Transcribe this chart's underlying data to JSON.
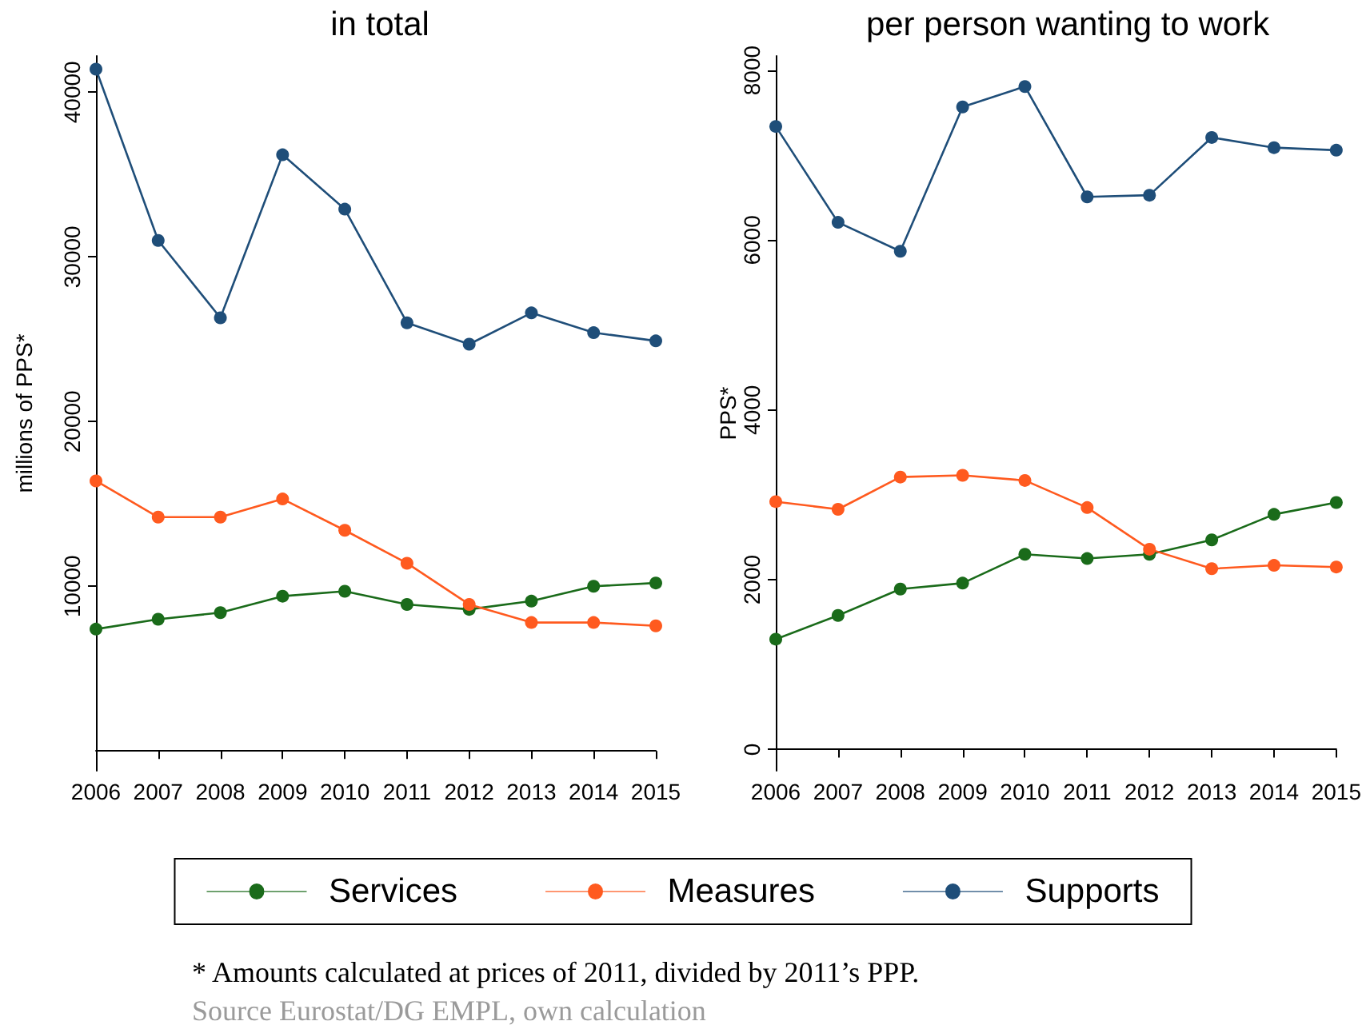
{
  "chart_data": [
    {
      "type": "line",
      "title": "in total",
      "ylabel": "millions of PPS*",
      "categories": [
        "2006",
        "2007",
        "2008",
        "2009",
        "2010",
        "2011",
        "2012",
        "2013",
        "2014",
        "2015"
      ],
      "ylim": [
        -1200,
        42200
      ],
      "yticks": [
        10000,
        20000,
        30000,
        40000
      ],
      "grid": false,
      "legend": false,
      "marker": "circle",
      "series": [
        {
          "color": "#1a6b1a",
          "values": [
            7400,
            8000,
            8400,
            9400,
            9700,
            8900,
            8600,
            9100,
            10000,
            10200
          ]
        },
        {
          "color": "#ff5a1f",
          "values": [
            16400,
            14200,
            14200,
            15300,
            13400,
            11400,
            8900,
            7800,
            7800,
            7600
          ]
        },
        {
          "color": "#1f4e79",
          "values": [
            41400,
            31000,
            26300,
            36200,
            32900,
            26000,
            24700,
            26600,
            25400,
            24900
          ]
        }
      ]
    },
    {
      "type": "line",
      "title": "per person wanting to work",
      "ylabel": "PPS*",
      "categories": [
        "2006",
        "2007",
        "2008",
        "2009",
        "2010",
        "2011",
        "2012",
        "2013",
        "2014",
        "2015"
      ],
      "ylim": [
        -250,
        8170
      ],
      "yticks": [
        0,
        2000,
        4000,
        6000,
        8000
      ],
      "grid": false,
      "legend": "bottom",
      "marker": "circle",
      "annotations": [
        "*  Amounts calculated at prices of 2011, divided by 2011’s PPP.",
        "Source Eurostat/DG EMPL, own calculation"
      ],
      "series": [
        {
          "name": "Services",
          "color": "#1a6b1a",
          "values": [
            1300,
            1580,
            1890,
            1960,
            2300,
            2250,
            2300,
            2470,
            2770,
            2910
          ]
        },
        {
          "name": "Measures",
          "color": "#ff5a1f",
          "values": [
            2920,
            2830,
            3210,
            3230,
            3170,
            2850,
            2360,
            2130,
            2170,
            2150
          ]
        },
        {
          "name": "Supports",
          "color": "#1f4e79",
          "values": [
            7340,
            6210,
            5870,
            7570,
            7810,
            6510,
            6530,
            7210,
            7090,
            7060
          ]
        }
      ]
    }
  ]
}
